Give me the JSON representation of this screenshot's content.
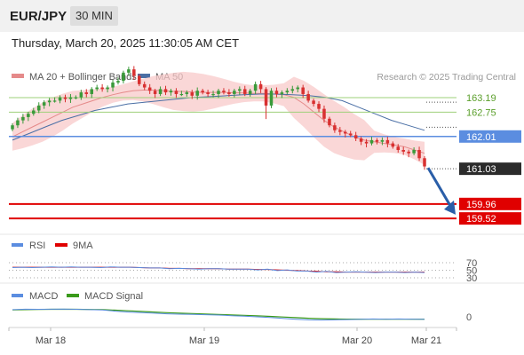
{
  "header": {
    "symbol": "EUR/JPY",
    "timeframe": "30 MIN"
  },
  "timestamp": "Thursday, March 20, 2025 11:30:05 AM CET",
  "legend": {
    "ma20": "MA 20 + Bollinger Bands",
    "ma50": "MA 50"
  },
  "copyright": "Research © 2025 Trading Central",
  "colors": {
    "up": "#3a9a3a",
    "down": "#d83030",
    "band": "#f8caca",
    "ma20": "#e58a8a",
    "ma50": "#4a6fa5",
    "pivot_line": "#5b8de0",
    "support": "#e00000",
    "resistance_line": "#9ed07a",
    "resistance_text": "#5a9e2a",
    "arrow": "#2a5ea8",
    "rsi": "#5b8de0",
    "rsi_ma": "#e00000",
    "macd": "#5b8de0",
    "macd_signal": "#3a9a1a"
  },
  "chart_data": [
    {
      "type": "candlestick",
      "instrument": "EUR/JPY",
      "timeframe": "30 MIN",
      "x_labels": [
        "Mar 18",
        "Mar 19",
        "Mar 20",
        "Mar 21"
      ],
      "y_range": [
        159.2,
        164.0
      ],
      "close": [
        162.35,
        162.5,
        162.6,
        162.7,
        162.8,
        162.95,
        163.05,
        163.1,
        163.1,
        163.2,
        163.15,
        163.2,
        163.2,
        163.35,
        163.3,
        163.45,
        163.5,
        163.45,
        163.5,
        163.65,
        163.7,
        163.95,
        164.05,
        163.85,
        163.6,
        163.5,
        163.4,
        163.3,
        163.45,
        163.35,
        163.4,
        163.3,
        163.3,
        163.35,
        163.25,
        163.4,
        163.35,
        163.3,
        163.3,
        163.4,
        163.35,
        163.3,
        163.4,
        163.45,
        163.3,
        163.4,
        163.6,
        163.45,
        162.95,
        163.4,
        163.3,
        163.35,
        163.4,
        163.45,
        163.5,
        163.3,
        163.1,
        163.0,
        162.85,
        162.55,
        162.35,
        162.2,
        162.15,
        162.1,
        162.05,
        161.95,
        161.85,
        161.8,
        161.9,
        161.85,
        161.9,
        161.8,
        161.7,
        161.6,
        161.55,
        161.5,
        161.6,
        161.35,
        161.1
      ],
      "ma20": [
        162.0,
        162.15,
        162.3,
        162.45,
        162.6,
        162.75,
        162.9,
        163.0,
        163.1,
        163.2,
        163.28,
        163.35,
        163.4,
        163.42,
        163.42,
        163.4,
        163.38,
        163.38,
        163.36,
        163.35,
        163.35,
        163.35,
        163.34,
        163.33,
        163.32,
        163.32,
        163.3,
        163.28,
        163.2,
        163.0,
        162.75,
        162.5,
        162.3,
        162.15,
        162.0,
        161.9,
        161.85,
        161.8,
        161.75,
        161.7,
        161.6,
        161.5
      ],
      "ma50": [
        161.9,
        162.1,
        162.3,
        162.5,
        162.65,
        162.8,
        162.9,
        163.0,
        163.05,
        163.1,
        163.15,
        163.2,
        163.22,
        163.25,
        163.28,
        163.3,
        163.3,
        163.28,
        163.25,
        163.2,
        163.1,
        162.9,
        162.7,
        162.5,
        162.35,
        162.2
      ],
      "last_price": 161.03,
      "levels": [
        {
          "value": 163.19,
          "label": "163.19",
          "kind": "resistance"
        },
        {
          "value": 162.75,
          "label": "162.75",
          "kind": "resistance"
        },
        {
          "value": 162.01,
          "label": "162.01",
          "kind": "pivot"
        },
        {
          "value": 161.03,
          "label": "161.03",
          "kind": "last"
        },
        {
          "value": 159.96,
          "label": "159.96",
          "kind": "support"
        },
        {
          "value": 159.52,
          "label": "159.52",
          "kind": "support"
        }
      ],
      "forecast": {
        "direction": "down",
        "target": 159.96
      }
    },
    {
      "type": "line",
      "title": "RSI",
      "series": [
        {
          "name": "RSI",
          "values": [
            57,
            58,
            57,
            58,
            59,
            58,
            59,
            58,
            58,
            57,
            59,
            58,
            58,
            57,
            56,
            56,
            54,
            55,
            54,
            53,
            54,
            54,
            53,
            53,
            53,
            51,
            53,
            49,
            51,
            48,
            48,
            45,
            47,
            44,
            45,
            46,
            45,
            44,
            45,
            45,
            44,
            45,
            44
          ]
        },
        {
          "name": "9MA",
          "values": [
            58,
            58,
            58,
            58,
            58,
            58,
            58,
            58,
            58,
            58,
            58,
            58,
            58,
            57,
            56,
            56,
            55,
            55,
            54,
            54,
            54,
            54,
            53,
            53,
            53,
            52,
            52,
            51,
            50,
            49,
            48,
            47,
            46,
            46,
            45,
            45,
            45,
            45,
            45,
            45,
            45,
            45,
            45
          ]
        }
      ],
      "levels": [
        70,
        50,
        30
      ]
    },
    {
      "type": "line",
      "title": "MACD",
      "series": [
        {
          "name": "MACD",
          "values": [
            0.42,
            0.45,
            0.44,
            0.45,
            0.46,
            0.44,
            0.42,
            0.4,
            0.32,
            0.26,
            0.22,
            0.18,
            0.14,
            0.12,
            0.1,
            0.08,
            0.06,
            0.02,
            -0.02,
            -0.06,
            -0.1,
            -0.16,
            -0.22,
            -0.26,
            -0.27,
            -0.26,
            -0.24,
            -0.22,
            -0.2,
            -0.21,
            -0.2,
            -0.21,
            -0.22
          ]
        },
        {
          "name": "MACD Signal",
          "values": [
            0.4,
            0.42,
            0.43,
            0.44,
            0.44,
            0.44,
            0.43,
            0.42,
            0.38,
            0.34,
            0.3,
            0.26,
            0.22,
            0.19,
            0.16,
            0.13,
            0.1,
            0.07,
            0.04,
            0.01,
            -0.03,
            -0.07,
            -0.11,
            -0.15,
            -0.18,
            -0.2,
            -0.21,
            -0.21,
            -0.21,
            -0.21,
            -0.21,
            -0.21,
            -0.21
          ]
        }
      ],
      "levels": [
        0
      ]
    }
  ],
  "indicators": {
    "rsi_label": "RSI",
    "rsi_ma_label": "9MA",
    "macd_label": "MACD",
    "macd_signal_label": "MACD Signal"
  },
  "rsi_ticks": [
    "70",
    "50",
    "30"
  ],
  "macd_ticks": [
    "0"
  ]
}
